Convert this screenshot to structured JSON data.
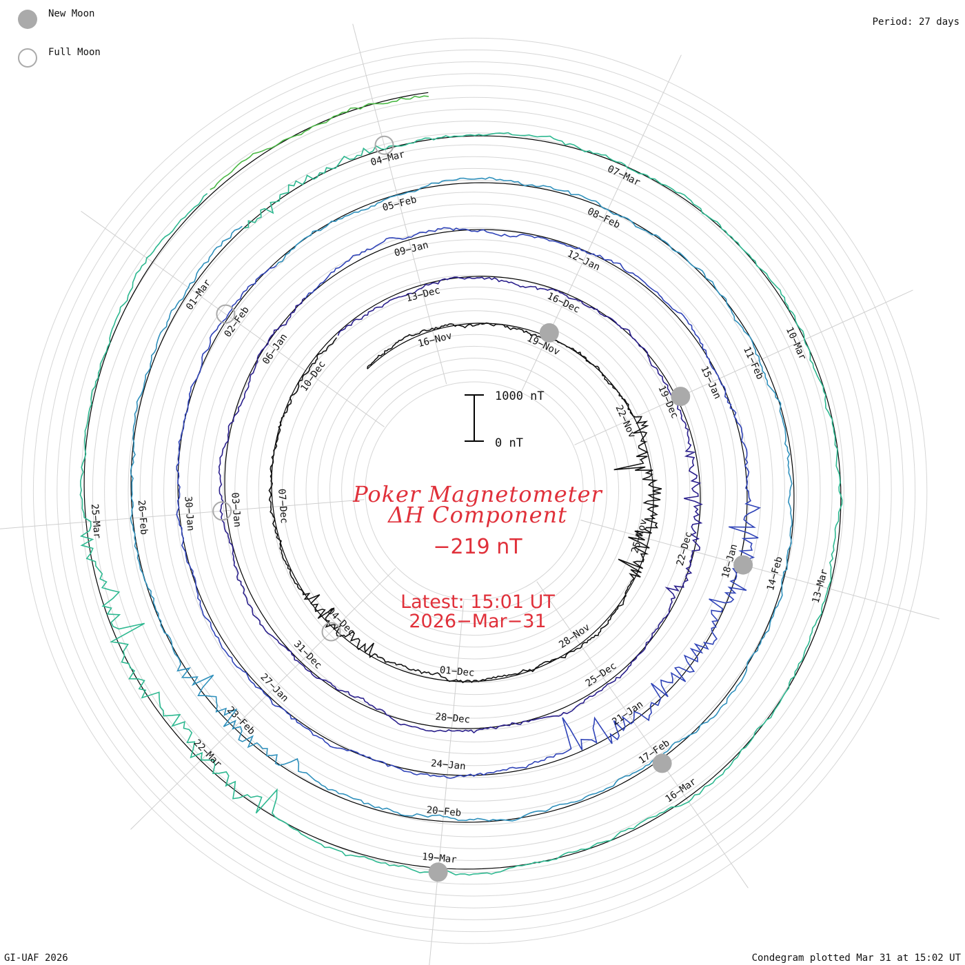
{
  "legend": {
    "new_moon_label": "New Moon",
    "full_moon_label": "Full Moon",
    "new_moon_color": "#aaaaaa",
    "full_moon_color": "#aaaaaa"
  },
  "header": {
    "period": "Period: 27 days"
  },
  "center": {
    "title_line1": "Poker Magnetometer",
    "title_line2": "ΔH Component",
    "value": "−219 nT",
    "latest": "Latest: 15:01 UT",
    "date": "2026−Mar−31"
  },
  "footer": {
    "credit": "GI-UAF 2026",
    "plotted": "Condegram plotted Mar 31 at 15:02 UT"
  },
  "chart_data": {
    "type": "line",
    "subtype": "spiral condegram",
    "title": "Poker Magnetometer ΔH Component",
    "period_days": 27,
    "scale_bar": {
      "top_label": "1000 nT",
      "bottom_label": "0 nT",
      "range_nT": [
        0,
        1000
      ]
    },
    "colors": [
      "#111111",
      "#2a1f8c",
      "#2f43b8",
      "#2f90bc",
      "#2db890",
      "#4bb845",
      "#9ab52c",
      "#c4a42a",
      "#c8671c",
      "#c9331c",
      "#b81818"
    ],
    "date_ticks": [
      "16−Nov",
      "19−Nov",
      "22−Nov",
      "25−Nov",
      "28−Nov",
      "01−Dec",
      "04−Dec",
      "07−Dec",
      "10−Dec",
      "13−Dec",
      "16−Dec",
      "19−Dec",
      "22−Dec",
      "25−Dec",
      "28−Dec",
      "31−Dec",
      "03−Jan",
      "06−Jan",
      "09−Jan",
      "12−Jan",
      "15−Jan",
      "18−Jan",
      "21−Jan",
      "24−Jan",
      "27−Jan",
      "30−Jan",
      "02−Feb",
      "05−Feb",
      "08−Feb",
      "11−Feb",
      "14−Feb",
      "17−Feb",
      "20−Feb",
      "23−Feb",
      "26−Feb",
      "01−Mar",
      "04−Mar",
      "07−Mar",
      "10−Mar",
      "13−Mar",
      "16−Mar",
      "19−Mar",
      "22−Mar",
      "25−Mar"
    ],
    "new_moons": [
      "19−Nov",
      "19−Dec",
      "18−Jan",
      "17−Feb",
      "19−Mar"
    ],
    "full_moons": [
      "04−Dec",
      "03−Jan",
      "02−Feb",
      "04−Mar"
    ],
    "start_date": "2025−Nov−14",
    "end_date": "2026−Mar−31",
    "series_summary": {
      "baseline_nT": 0,
      "latest_value_nT": -219,
      "disturbed_intervals": [
        "22−Nov to 26−Nov",
        "03−Dec to 05−Dec",
        "17−Jan to 22−Jan",
        "22−Feb to 24−Feb",
        "21−Mar to 24−Mar"
      ]
    }
  }
}
